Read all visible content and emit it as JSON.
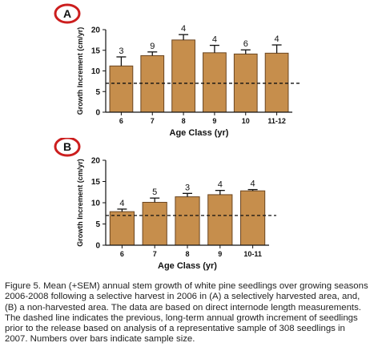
{
  "chart_data": [
    {
      "type": "bar",
      "panel_label": "A",
      "categories": [
        "6",
        "7",
        "8",
        "9",
        "10",
        "11-12"
      ],
      "values": [
        11.2,
        13.7,
        17.5,
        14.4,
        14.1,
        14.3
      ],
      "errors": [
        2.2,
        0.9,
        1.3,
        1.8,
        1.0,
        2.0
      ],
      "sample_sizes": [
        "3",
        "9",
        "4",
        "4",
        "6",
        "4"
      ],
      "reference_line": 7,
      "xlabel": "Age Class (yr)",
      "ylabel": "Growth Increment (cm/yr)",
      "ylim": [
        0,
        20
      ],
      "yticks": [
        "0",
        "5",
        "10",
        "15",
        "20"
      ],
      "bar_color": "#c68e4c",
      "grid": false
    },
    {
      "type": "bar",
      "panel_label": "B",
      "categories": [
        "6",
        "7",
        "8",
        "9",
        "10-11"
      ],
      "values": [
        7.9,
        10.1,
        11.4,
        11.9,
        12.8
      ],
      "errors": [
        0.6,
        1.0,
        0.8,
        1.0,
        0.3
      ],
      "sample_sizes": [
        "4",
        "5",
        "3",
        "4",
        "4"
      ],
      "reference_line": 7,
      "xlabel": "Age Class (yr)",
      "ylabel": "Growth Increment (cm/yr)",
      "ylim": [
        0,
        20
      ],
      "yticks": [
        "0",
        "5",
        "10",
        "15",
        "20"
      ],
      "bar_color": "#c68e4c",
      "grid": false
    }
  ],
  "caption": "Figure 5. Mean (+SEM) annual stem growth of white pine seedlings over growing seasons 2006-2008 following a selective harvest in 2006 in (A) a selectively harvested area, and, (B) a non-harvested area. The data are based on direct internode length measurements. The dashed line indicates the previous, long-term annual growth increment of seedlings prior to the release based on analysis of a representative sample of 308 seedlings in 2007. Numbers over bars indicate sample size.",
  "colors": {
    "panel_badge_ring": "#cc1e1e",
    "bar_fill": "#c68e4c",
    "bar_stroke": "#6a4520"
  }
}
